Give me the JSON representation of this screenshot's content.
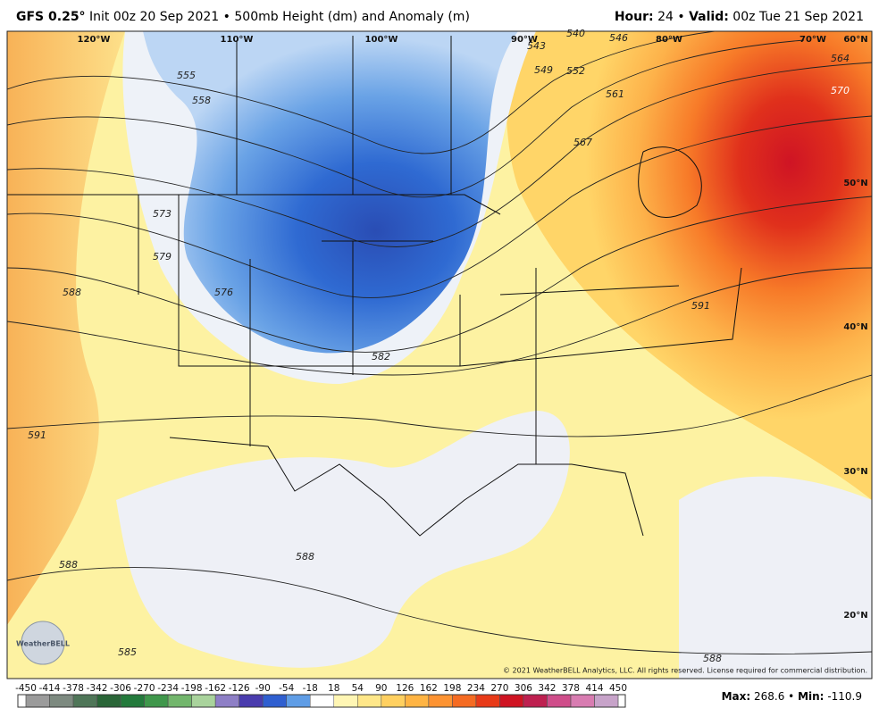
{
  "header": {
    "model": "GFS 0.25°",
    "init": "Init 00z 20 Sep 2021",
    "sep": "•",
    "product": "500mb Height (dm) and Anomaly (m)",
    "hour_label": "Hour:",
    "hour": "24",
    "valid_label": "Valid:",
    "valid": "00z Tue 21 Sep 2021"
  },
  "map": {
    "lon_labels": [
      "120°W",
      "110°W",
      "100°W",
      "90°W",
      "80°W",
      "70°W"
    ],
    "lat_labels": [
      "60°N",
      "50°N",
      "40°N",
      "30°N",
      "20°N"
    ],
    "contour_labels": [
      "540",
      "543",
      "546",
      "549",
      "552",
      "555",
      "558",
      "561",
      "564",
      "567",
      "570",
      "573",
      "576",
      "579",
      "582",
      "585",
      "588",
      "588",
      "588",
      "588",
      "591",
      "591"
    ],
    "logo": "WeatherBELL",
    "credit": "© 2021 WeatherBELL Analytics, LLC. All rights reserved. License required for commercial distribution."
  },
  "colorbar": {
    "ticks": [
      -450,
      -414,
      -378,
      -342,
      -306,
      -270,
      -234,
      -198,
      -162,
      -126,
      -90,
      -54,
      -18,
      18,
      54,
      90,
      126,
      162,
      198,
      234,
      270,
      306,
      342,
      378,
      414,
      450
    ],
    "colors": [
      "#9b9b9b",
      "#7d8a80",
      "#4f7658",
      "#2a6638",
      "#237a3c",
      "#3f974b",
      "#72b66c",
      "#a9d39c",
      "#8e7fc6",
      "#4a3cae",
      "#2f5fd0",
      "#5f9de6",
      "#ffffff",
      "#fff6b4",
      "#ffe789",
      "#ffd060",
      "#ffb443",
      "#fd9332",
      "#f56b22",
      "#e83a18",
      "#cf1322",
      "#be2050",
      "#cf4d8a",
      "#d87cb1",
      "#c7a3c9"
    ]
  },
  "footer": {
    "max_label": "Max:",
    "max": 268.6,
    "sep": "•",
    "min_label": "Min:",
    "min": -110.9
  }
}
